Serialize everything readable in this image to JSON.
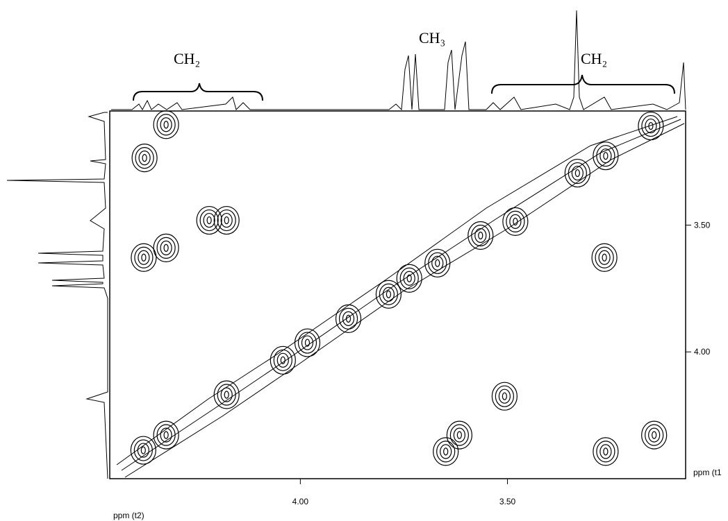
{
  "chart_data": {
    "type": "contour",
    "annotations": [
      "CH₂",
      "CH₃",
      "CH₂"
    ],
    "xlabel": "ppm (t2)",
    "ylabel": "ppm (t1",
    "xlim": [
      4.46,
      3.07
    ],
    "ylim": [
      3.05,
      4.5
    ],
    "xticks": [
      {
        "value": 4,
        "label": "4.00"
      },
      {
        "value": 3.5,
        "label": "3.50"
      }
    ],
    "yticks": [
      {
        "value": 3.5,
        "label": "3.50"
      },
      {
        "value": 4,
        "label": "4.00"
      }
    ],
    "color": "#000000",
    "peaks": {
      "x": [
        4.324,
        4.376,
        4.178,
        4.22,
        4.324,
        4.378,
        4.379,
        4.324,
        4.178,
        3.787,
        3.737,
        3.669,
        3.565,
        3.481,
        3.331,
        3.263,
        3.154,
        3.507,
        3.263,
        3.146,
        3.266,
        3.649,
        3.616,
        3.884,
        3.983,
        4.042
      ],
      "y": [
        3.104,
        3.235,
        3.481,
        3.481,
        3.59,
        3.628,
        4.388,
        4.328,
        4.169,
        3.773,
        3.71,
        3.65,
        3.541,
        3.486,
        3.295,
        3.227,
        3.109,
        4.175,
        4.393,
        4.328,
        3.628,
        4.393,
        4.328,
        3.869,
        3.964,
        4.033
      ]
    }
  }
}
